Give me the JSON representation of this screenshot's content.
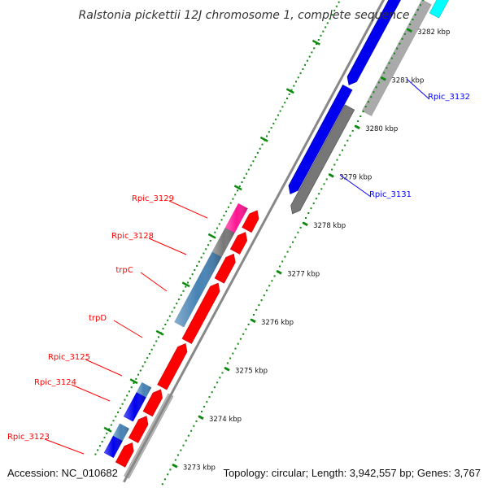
{
  "title": "Ralstonia pickettii 12J chromosome 1, complete sequence",
  "accession": "Accession: NC_010682",
  "summary": "Topology: circular; Length: 3,942,557 bp; Genes: 3,767",
  "colors": {
    "forward_label": "#ff0000",
    "reverse_label": "#0000ff",
    "tick": "#118811",
    "backbone": "#888888"
  },
  "ticks": [
    {
      "kbp": 3273,
      "label": "3273 kbp"
    },
    {
      "kbp": 3274,
      "label": "3274 kbp"
    },
    {
      "kbp": 3275,
      "label": "3275 kbp"
    },
    {
      "kbp": 3276,
      "label": "3276 kbp"
    },
    {
      "kbp": 3277,
      "label": "3277 kbp"
    },
    {
      "kbp": 3278,
      "label": "3278 kbp"
    },
    {
      "kbp": 3279,
      "label": "3279 kbp"
    },
    {
      "kbp": 3280,
      "label": "3280 kbp"
    },
    {
      "kbp": 3281,
      "label": "3281 kbp"
    },
    {
      "kbp": 3282,
      "label": "3282 kbp"
    }
  ],
  "labeled_genes": [
    {
      "name": "Rpic_3123",
      "strand": "forward"
    },
    {
      "name": "Rpic_3124",
      "strand": "forward"
    },
    {
      "name": "Rpic_3125",
      "strand": "forward"
    },
    {
      "name": "trpD",
      "strand": "forward"
    },
    {
      "name": "trpC",
      "strand": "forward"
    },
    {
      "name": "Rpic_3128",
      "strand": "forward"
    },
    {
      "name": "Rpic_3129",
      "strand": "forward"
    },
    {
      "name": "Rpic_3131",
      "strand": "reverse"
    },
    {
      "name": "Rpic_3132",
      "strand": "reverse"
    }
  ],
  "tracks": {
    "outer_forward": [
      {
        "kind": "rRNA",
        "color": "#0000ee"
      },
      {
        "kind": "tRNA",
        "color": "#4682b4"
      },
      {
        "kind": "CDS",
        "color": "#0000ee"
      },
      {
        "kind": "pseudo",
        "color": "#4682b4"
      },
      {
        "kind": "other",
        "color": "#777777"
      },
      {
        "kind": "misc",
        "color": "#ff1493"
      }
    ],
    "inner_forward": [
      {
        "kind": "CDS",
        "color": "#ff0000"
      }
    ],
    "inner_reverse": [
      {
        "kind": "CDS",
        "color": "#0000ee"
      },
      {
        "kind": "other",
        "color": "#777777"
      }
    ],
    "outer_reverse": [
      {
        "kind": "CDS",
        "color": "#aaaaaa"
      },
      {
        "kind": "misc",
        "color": "#00ffff"
      }
    ]
  }
}
